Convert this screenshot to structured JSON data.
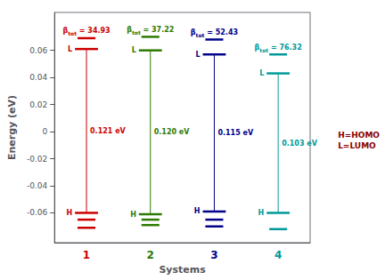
{
  "chart_data": {
    "type": "energy_levels",
    "xlabel": "Systems",
    "ylabel": "Energy (eV)",
    "categories": [
      "1",
      "2",
      "3",
      "4"
    ],
    "colors": [
      "#cc0000",
      "#2d7a00",
      "#00008b",
      "#009999"
    ],
    "lumo": [
      0.061,
      0.06,
      0.057,
      0.043
    ],
    "homo": [
      -0.06,
      -0.061,
      -0.059,
      -0.06
    ],
    "extra_lumo": [
      0.069,
      0.07,
      0.068,
      0.057
    ],
    "extra_homo1": [
      -0.065,
      -0.065,
      -0.065,
      -0.072
    ],
    "extra_homo2": [
      -0.071,
      -0.069,
      -0.07,
      null
    ],
    "lumo_label": "L",
    "homo_label": "H",
    "gap_labels": [
      "0.121 eV",
      "0.120 eV",
      "0.115 eV",
      "0.103 eV"
    ],
    "beta_labels": [
      {
        "symbol": "β",
        "subscript": "tot",
        "text": " = 34.93"
      },
      {
        "symbol": "β",
        "subscript": "tot",
        "text": " = 37.22"
      },
      {
        "symbol": "β",
        "subscript": "tot",
        "text": " = 52.43"
      },
      {
        "symbol": "β",
        "subscript": "tot",
        "text": " = 76.32"
      }
    ],
    "annotation": "H=HOMO\nL=LUMO",
    "annotation_color": "#8b0000",
    "ylim": [
      -0.082,
      0.088
    ],
    "yticks": [
      -0.06,
      -0.04,
      -0.02,
      0,
      0.02,
      0.04,
      0.06
    ],
    "grid": false
  }
}
